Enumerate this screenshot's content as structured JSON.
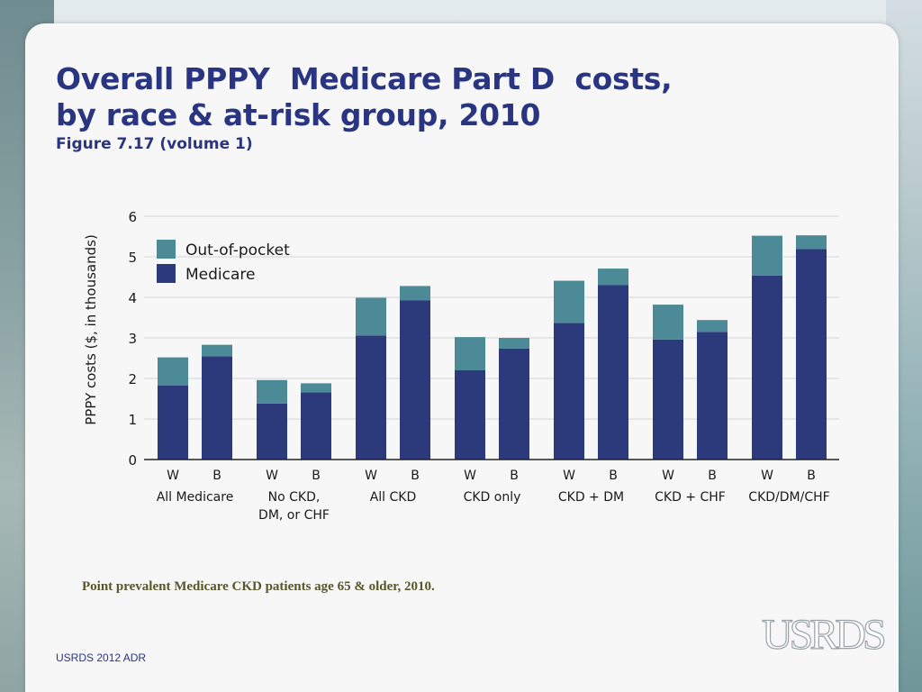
{
  "title_lines": [
    "Overall PPPY  Medicare Part D  costs,",
    "by race & at-risk group, 2010"
  ],
  "subtitle": "Figure 7.17 (volume 1)",
  "footnote": "Point prevalent Medicare CKD patients age 65 & older, 2010.",
  "source": "USRDS 2012 ADR",
  "logo_text": "USRDS",
  "colors": {
    "title": "#2a3582",
    "medicare": "#2c3a7c",
    "out_of_pocket": "#4d8a98",
    "grid": "#d6d6d6"
  },
  "chart_data": {
    "type": "bar",
    "stacked": true,
    "ylabel": "PPPY costs ($, in thousands)",
    "ylim": [
      0,
      6
    ],
    "yticks": [
      "0",
      "1",
      "2",
      "3",
      "4",
      "5",
      "6"
    ],
    "grid": true,
    "legend_position": "top-left",
    "legend": [
      "Out-of-pocket",
      "Medicare"
    ],
    "groups": [
      {
        "label_lines": [
          "All Medicare"
        ],
        "bars": [
          {
            "race": "W",
            "medicare": 1.83,
            "out_of_pocket": 0.69
          },
          {
            "race": "B",
            "medicare": 2.55,
            "out_of_pocket": 0.28
          }
        ]
      },
      {
        "label_lines": [
          "No CKD,",
          "DM, or CHF"
        ],
        "bars": [
          {
            "race": "W",
            "medicare": 1.38,
            "out_of_pocket": 0.58
          },
          {
            "race": "B",
            "medicare": 1.66,
            "out_of_pocket": 0.22
          }
        ]
      },
      {
        "label_lines": [
          "All CKD"
        ],
        "bars": [
          {
            "race": "W",
            "medicare": 3.06,
            "out_of_pocket": 0.93
          },
          {
            "race": "B",
            "medicare": 3.93,
            "out_of_pocket": 0.35
          }
        ]
      },
      {
        "label_lines": [
          "CKD only"
        ],
        "bars": [
          {
            "race": "W",
            "medicare": 2.2,
            "out_of_pocket": 0.82
          },
          {
            "race": "B",
            "medicare": 2.74,
            "out_of_pocket": 0.26
          }
        ]
      },
      {
        "label_lines": [
          "CKD + DM"
        ],
        "bars": [
          {
            "race": "W",
            "medicare": 3.37,
            "out_of_pocket": 1.04
          },
          {
            "race": "B",
            "medicare": 4.3,
            "out_of_pocket": 0.41
          }
        ]
      },
      {
        "label_lines": [
          "CKD + CHF"
        ],
        "bars": [
          {
            "race": "W",
            "medicare": 2.96,
            "out_of_pocket": 0.86
          },
          {
            "race": "B",
            "medicare": 3.15,
            "out_of_pocket": 0.29
          }
        ]
      },
      {
        "label_lines": [
          "CKD/DM/CHF"
        ],
        "bars": [
          {
            "race": "W",
            "medicare": 4.54,
            "out_of_pocket": 0.98
          },
          {
            "race": "B",
            "medicare": 5.19,
            "out_of_pocket": 0.34
          }
        ]
      }
    ]
  }
}
